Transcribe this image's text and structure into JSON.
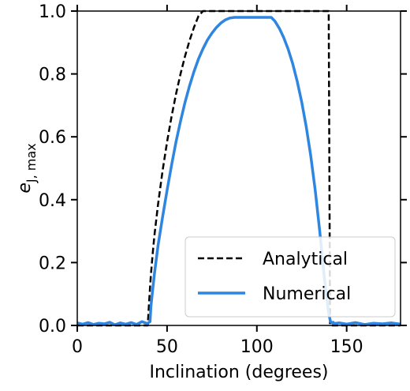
{
  "chart_data": {
    "type": "line",
    "xlabel": "Inclination (degrees)",
    "ylabel": "e_J,max",
    "ylabel_main": "e",
    "ylabel_sub": "J, max",
    "xlim": [
      0,
      180
    ],
    "ylim": [
      0,
      1
    ],
    "xticks": [
      0,
      50,
      100,
      150
    ],
    "xtick_labels": [
      "0",
      "50",
      "100",
      "150"
    ],
    "yticks": [
      0,
      0.2,
      0.4,
      0.6,
      0.8,
      1.0
    ],
    "ytick_labels": [
      "0.0",
      "0.2",
      "0.4",
      "0.6",
      "0.8",
      "1.0"
    ],
    "grid": false,
    "legend_position": "bottom-right",
    "series": [
      {
        "name": "Analytical",
        "color": "#000000",
        "style": "dashed",
        "x": [
          0,
          39,
          39.23,
          40,
          41,
          42,
          43,
          45,
          47.5,
          50,
          52.5,
          55,
          57.5,
          60,
          62.5,
          65,
          67.5,
          70,
          72.5,
          75,
          77.5,
          80,
          82.5,
          85,
          87.5,
          90,
          92.5,
          95,
          97.5,
          100,
          102.5,
          105,
          107.5,
          110,
          112.5,
          115,
          117.5,
          120,
          122.5,
          125,
          127.5,
          130,
          132.5,
          135,
          137,
          138,
          139,
          140,
          140.77,
          141,
          180
        ],
        "y": [
          0,
          0,
          0,
          0.0754,
          0.1616,
          0.2294,
          0.2876,
          0.3862,
          0.4922,
          0.584,
          0.6649,
          0.7367,
          0.8004,
          0.8567,
          0.9061,
          0.9487,
          0.9845,
          1.0,
          1.0,
          1.0,
          1.0,
          1.0,
          1.0,
          1.0,
          1.0,
          1.0,
          1.0,
          1.0,
          1.0,
          1.0,
          1.0,
          1.0,
          1.0,
          1.0,
          1.0,
          1.0,
          1.0,
          1.0,
          1.0,
          1.0,
          1.0,
          1.0,
          1.0,
          1.0,
          1.0,
          1.0,
          1.0,
          1.0,
          0,
          0,
          0
        ]
      },
      {
        "name": "Numerical",
        "color": "#2f86e0",
        "style": "solid",
        "x": [
          0,
          3,
          6,
          9,
          12,
          15,
          18,
          21,
          24,
          27,
          30,
          33,
          36,
          39,
          40,
          40.5,
          41,
          42,
          43,
          45,
          47.5,
          50,
          52.5,
          55,
          57.5,
          60,
          62.5,
          65,
          67.5,
          70,
          72.5,
          75,
          77.5,
          80,
          82.5,
          85,
          87.5,
          90,
          92,
          95,
          98,
          100,
          103,
          106,
          108,
          110,
          112.5,
          115,
          117.5,
          120,
          122.5,
          125,
          127.5,
          130,
          132.5,
          135,
          137.5,
          140,
          141,
          142,
          142.5,
          143,
          146,
          150,
          155,
          160,
          165,
          170,
          175,
          180
        ],
        "y": [
          0.008,
          0.004,
          0.009,
          0.003,
          0.007,
          0.005,
          0.01,
          0.002,
          0.008,
          0.004,
          0.009,
          0.003,
          0.012,
          0.006,
          0.01,
          0.012,
          0.06,
          0.115,
          0.165,
          0.255,
          0.345,
          0.43,
          0.51,
          0.585,
          0.65,
          0.71,
          0.762,
          0.808,
          0.848,
          0.88,
          0.908,
          0.93,
          0.948,
          0.962,
          0.972,
          0.978,
          0.98,
          0.98,
          0.98,
          0.98,
          0.98,
          0.98,
          0.98,
          0.98,
          0.98,
          0.968,
          0.945,
          0.915,
          0.878,
          0.832,
          0.776,
          0.71,
          0.632,
          0.54,
          0.43,
          0.3,
          0.155,
          0.038,
          0.012,
          0.008,
          0.01,
          0.006,
          0.008,
          0.004,
          0.009,
          0.003,
          0.007,
          0.005,
          0.008,
          0.004
        ]
      }
    ]
  }
}
